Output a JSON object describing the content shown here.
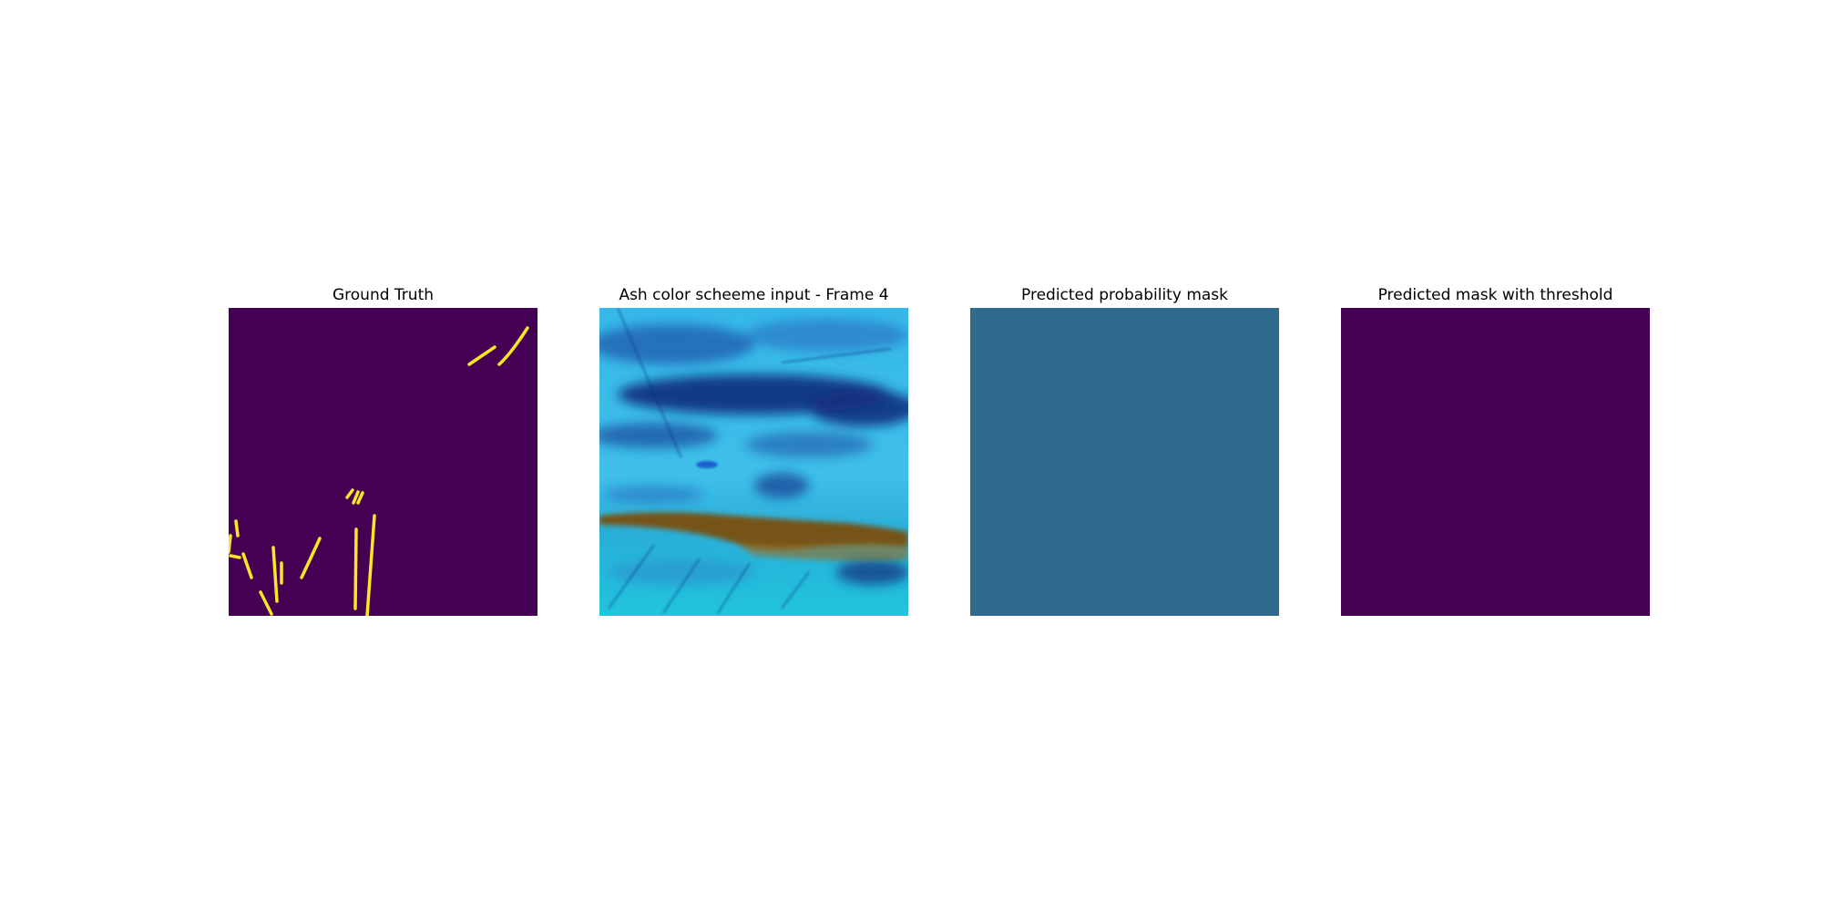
{
  "panels": [
    {
      "title": "Ground Truth",
      "kind": "binary-mask",
      "background_color": "#440154",
      "foreground_color": "#fde725"
    },
    {
      "title": "Ash color scheeme input - Frame 4",
      "kind": "satellite-false-color",
      "colors": {
        "sky_cyan": "#2fc4e6",
        "deep_blue": "#0e2a78",
        "mid_blue": "#1d64b8",
        "ash_brown": "#8a5a10",
        "light_cyan": "#23c6dd"
      }
    },
    {
      "title": "Predicted probability mask",
      "kind": "uniform-probability",
      "fill_color": "#306a8e"
    },
    {
      "title": "Predicted mask with threshold",
      "kind": "binary-mask-empty",
      "fill_color": "#440154"
    }
  ]
}
